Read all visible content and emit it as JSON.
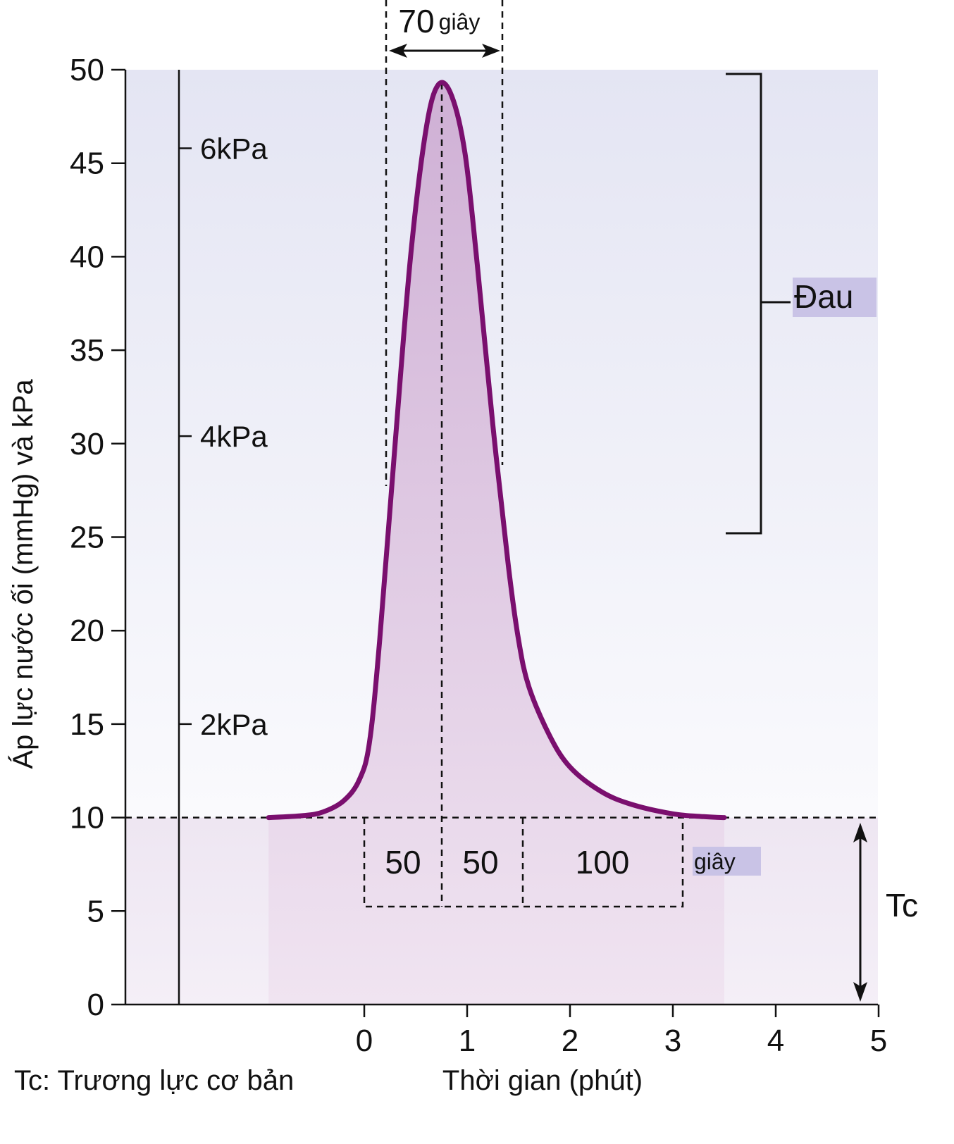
{
  "chart_data": {
    "type": "area",
    "ylabel": "Áp lực nước ối (mmHg) và kPa",
    "xlabel": "Thời gian (phút)",
    "ylim": [
      0,
      50
    ],
    "xlim": [
      -2.35,
      5
    ],
    "yticks": [
      "0",
      "5",
      "10",
      "15",
      "20",
      "25",
      "30",
      "35",
      "40",
      "45",
      "50"
    ],
    "xticks": [
      "0",
      "1",
      "2",
      "3",
      "4",
      "5"
    ],
    "kpa_scale": [
      {
        "label": "2kPa",
        "y": 15
      },
      {
        "label": "4kPa",
        "y": 30.4
      },
      {
        "label": "6kPa",
        "y": 45.8
      }
    ],
    "series": [
      {
        "color": "#7a0f6e",
        "x": [
          -0.93,
          -0.6,
          -0.4,
          -0.2,
          -0.05,
          0.05,
          0.15,
          0.3,
          0.45,
          0.6,
          0.72,
          0.85,
          0.98,
          1.1,
          1.25,
          1.4,
          1.5,
          1.6,
          1.8,
          2.0,
          2.3,
          2.6,
          3.0,
          3.3,
          3.5
        ],
        "y": [
          10,
          10.1,
          10.3,
          10.9,
          12.0,
          14.0,
          19.5,
          30.0,
          40.0,
          46.8,
          49.2,
          48.6,
          45.5,
          39.5,
          31.0,
          23.5,
          19.5,
          17.0,
          14.4,
          12.7,
          11.4,
          10.7,
          10.2,
          10.05,
          10
        ]
      }
    ],
    "baseline": 10,
    "peak_width": {
      "value": "70",
      "unit": "giây"
    },
    "phases": [
      "50",
      "50",
      "100"
    ],
    "phases_unit": "giây",
    "pain_label": "Đau",
    "tonus_label": "Tc",
    "footnote": "Tc: Trương lực cơ bản"
  },
  "colors": {
    "curve": "#7a0f6e",
    "plot_top": "#e5e6f4",
    "plot_mid": "#f7f7fc",
    "plot_low": "#f0e9f4",
    "label_highlight": "#c9c3e6"
  }
}
